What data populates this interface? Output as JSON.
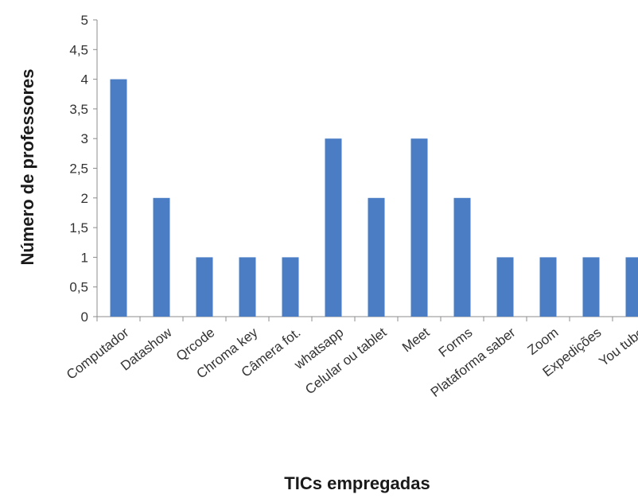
{
  "chart_data": {
    "type": "bar",
    "categories": [
      "Computador",
      "Datashow",
      "Qrcode",
      "Chroma key",
      "Câmera fot.",
      "whatsapp",
      "Celular ou tablet",
      "Meet",
      "Forms",
      "Plataforma saber",
      "Zoom",
      "Expedições",
      "You tube"
    ],
    "values": [
      4,
      2,
      1,
      1,
      1,
      3,
      2,
      3,
      2,
      1,
      1,
      1,
      1
    ],
    "title": "",
    "xlabel": "TICs empregadas",
    "ylabel": "Número de professores",
    "ylim": [
      0,
      5
    ],
    "yticks": [
      "0",
      "0,5",
      "1",
      "1,5",
      "2",
      "2,5",
      "3",
      "3,5",
      "4",
      "4,5",
      "5"
    ],
    "grid": false,
    "legend": "none",
    "bar_color": "#4a7dc4"
  }
}
